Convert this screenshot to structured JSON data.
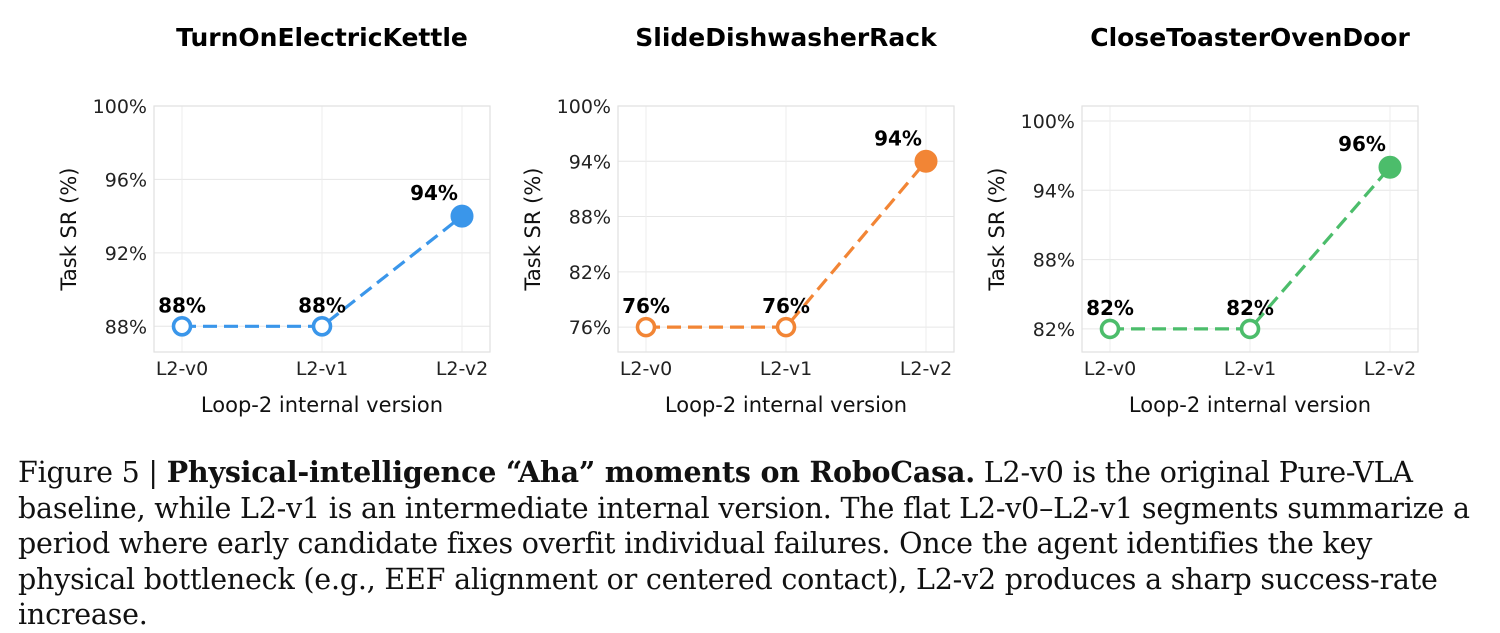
{
  "figure": {
    "label": "Figure 5 |",
    "caption_bold": "Physical-intelligence “Aha” moments on RoboCasa.",
    "caption_text": "L2-v0 is the original Pure-VLA baseline, while L2-v1 is an intermediate internal version. The flat L2-v0–L2-v1 segments summarize a period where early candidate fixes overfit individual failures. Once the agent identifies the key physical bottleneck (e.g., EEF alignment or centered contact), L2-v2 produces a sharp success-rate increase."
  },
  "chart_data": [
    {
      "type": "line",
      "title": "TurnOnElectricKettle",
      "xlabel": "Loop-2 internal version",
      "ylabel": "Task SR (%)",
      "categories": [
        "L2-v0",
        "L2-v1",
        "L2-v2"
      ],
      "values": [
        88,
        88,
        94
      ],
      "point_labels": [
        "88%",
        "88%",
        "94%"
      ],
      "yticks": [
        88,
        92,
        96,
        100
      ],
      "ytick_labels": [
        "88%",
        "92%",
        "96%",
        "100%"
      ],
      "ylim": [
        86.6,
        100
      ],
      "color": "#3a96ea",
      "filled": [
        false,
        false,
        true
      ],
      "grid": true
    },
    {
      "type": "line",
      "title": "SlideDishwasherRack",
      "xlabel": "Loop-2 internal version",
      "ylabel": "Task SR (%)",
      "categories": [
        "L2-v0",
        "L2-v1",
        "L2-v2"
      ],
      "values": [
        76,
        76,
        94
      ],
      "point_labels": [
        "76%",
        "76%",
        "94%"
      ],
      "yticks": [
        76,
        82,
        88,
        94,
        100
      ],
      "ytick_labels": [
        "76%",
        "82%",
        "88%",
        "94%",
        "100%"
      ],
      "ylim": [
        73.3,
        100
      ],
      "color": "#f28535",
      "filled": [
        false,
        false,
        true
      ],
      "grid": true
    },
    {
      "type": "line",
      "title": "CloseToasterOvenDoor",
      "xlabel": "Loop-2 internal version",
      "ylabel": "Task SR (%)",
      "categories": [
        "L2-v0",
        "L2-v1",
        "L2-v2"
      ],
      "values": [
        82,
        82,
        96
      ],
      "point_labels": [
        "82%",
        "82%",
        "96%"
      ],
      "yticks": [
        82,
        88,
        94,
        100
      ],
      "ytick_labels": [
        "82%",
        "88%",
        "94%",
        "100%"
      ],
      "ylim": [
        80,
        101.3
      ],
      "color": "#4cbd6b",
      "filled": [
        false,
        false,
        true
      ],
      "grid": true
    }
  ]
}
